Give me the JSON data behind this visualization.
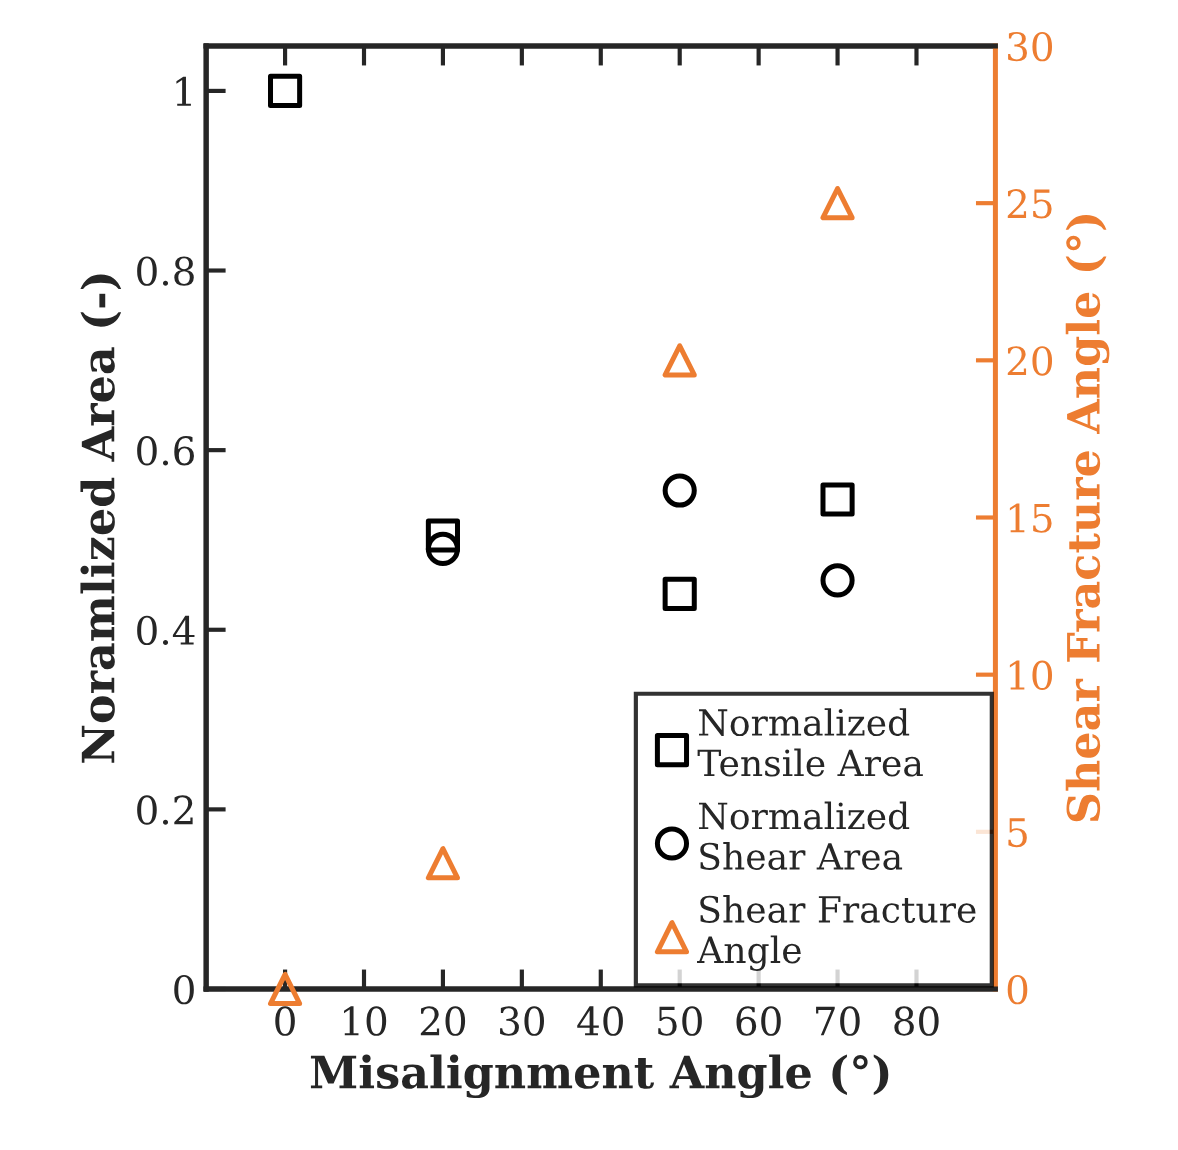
{
  "chart_data": {
    "type": "scatter",
    "xlabel": "Misalignment Angle (°)",
    "ylabel": "Noramlized Area (-)",
    "y2label": "Shear Fracture Angle (°)",
    "x": [
      0,
      20,
      50,
      70
    ],
    "series": [
      {
        "name": "Normalized\nTensile Area",
        "color": "#000000",
        "marker": "square",
        "values": [
          1.0,
          0.505,
          0.44,
          0.545
        ]
      },
      {
        "name": "Normalized\nShear Area",
        "color": "#000000",
        "marker": "circle",
        "values": [
          null,
          0.49,
          0.555,
          0.455
        ]
      },
      {
        "name": "Shear Fracture\nAngle",
        "color": "#ed7d31",
        "marker": "triangle",
        "axis": "y2",
        "values": [
          0,
          4,
          20,
          25
        ]
      }
    ],
    "xlim": [
      -10,
      90
    ],
    "xticks": [
      0,
      10,
      20,
      30,
      40,
      50,
      60,
      70,
      80
    ],
    "ylim": [
      0,
      1.05
    ],
    "yticks": [
      0,
      0.2,
      0.4,
      0.6,
      0.8,
      1
    ],
    "y2lim": [
      0,
      30
    ],
    "y2ticks": [
      0,
      5,
      10,
      15,
      20,
      25,
      30
    ],
    "legend": "bottom right",
    "grid": false
  }
}
